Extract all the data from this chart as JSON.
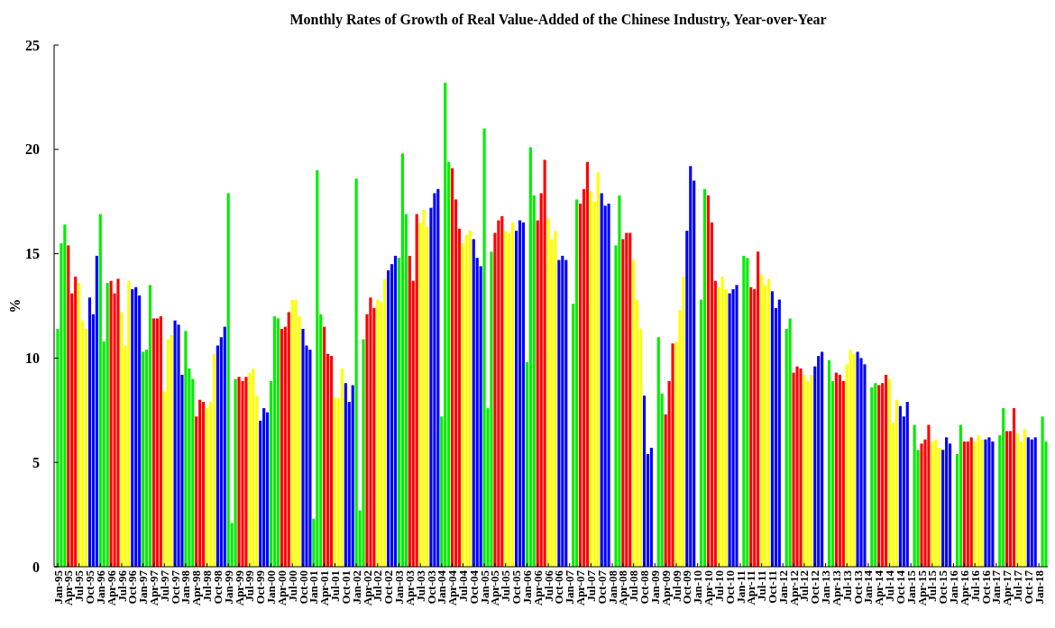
{
  "chart_data": {
    "type": "bar",
    "title": "Monthly Rates of Growth  of Real Value-Added of the Chinese Industry,  Year-over-Year",
    "ylabel": "%",
    "categories": [
      "Jan-95",
      null,
      null,
      "Apr-95",
      null,
      null,
      "Jul-95",
      null,
      null,
      "Oct-95",
      null,
      null,
      "Jan-96",
      null,
      null,
      "Apr-96",
      null,
      null,
      "Jul-96",
      null,
      null,
      "Oct-96",
      null,
      null,
      "Jan-97",
      null,
      null,
      "Apr-97",
      null,
      null,
      "Jul-97",
      null,
      null,
      "Oct-97",
      null,
      null,
      "Jan-98",
      null,
      null,
      "Apr-98",
      null,
      null,
      "Jul-98",
      null,
      null,
      "Oct-98",
      null,
      null,
      "Jan-99",
      null,
      null,
      "Apr-99",
      null,
      null,
      "Jul-99",
      null,
      null,
      "Oct-99",
      null,
      null,
      "Jan-00",
      null,
      null,
      "Apr-00",
      null,
      null,
      "Jul-00",
      null,
      null,
      "Oct-00",
      null,
      null,
      "Jan-01",
      null,
      null,
      "Apr-01",
      null,
      null,
      "Jul-01",
      null,
      null,
      "Oct-01",
      null,
      null,
      "Jan-02",
      null,
      null,
      "Apr-02",
      null,
      null,
      "Jul-02",
      null,
      null,
      "Oct-02",
      null,
      null,
      "Jan-03",
      null,
      null,
      "Apr-03",
      null,
      null,
      "Jul-03",
      null,
      null,
      "Oct-03",
      null,
      null,
      "Jan-04",
      null,
      null,
      "Apr-04",
      null,
      null,
      "Jul-04",
      null,
      null,
      "Oct-04",
      null,
      null,
      "Jan-05",
      null,
      null,
      "Apr-05",
      null,
      null,
      "Jul-05",
      null,
      null,
      "Oct-05",
      null,
      null,
      "Jan-06",
      null,
      null,
      "Apr-06",
      null,
      null,
      "Jul-06",
      null,
      null,
      "Oct-06",
      null,
      null,
      "Jan-07",
      null,
      null,
      "Apr-07",
      null,
      null,
      "Jul-07",
      null,
      null,
      "Oct-07",
      null,
      null,
      "Jan-08",
      null,
      null,
      "Apr-08",
      null,
      null,
      "Jul-08",
      null,
      null,
      "Oct-08",
      null,
      null,
      "Jan-09",
      null,
      null,
      "Apr-09",
      null,
      null,
      "Jul-09",
      null,
      null,
      "Oct-09",
      null,
      null,
      "Jan-10",
      null,
      null,
      "Apr-10",
      null,
      null,
      "Jul-10",
      null,
      null,
      "Oct-10",
      null,
      null,
      "Jan-11",
      null,
      null,
      "Apr-11",
      null,
      null,
      "Jul-11",
      null,
      null,
      "Oct-11",
      null,
      null,
      "Jan-12",
      null,
      null,
      "Apr-12",
      null,
      null,
      "Jul-12",
      null,
      null,
      "Oct-12",
      null,
      null,
      "Jan-13",
      null,
      null,
      "Apr-13",
      null,
      null,
      "Jul-13",
      null,
      null,
      "Oct-13",
      null,
      null,
      "Jan-14",
      null,
      null,
      "Apr-14",
      null,
      null,
      "Jul-14",
      null,
      null,
      "Oct-14",
      null,
      null,
      "Jan-15",
      null,
      null,
      "Apr-15",
      null,
      null,
      "Jul-15",
      null,
      null,
      "Oct-15",
      null,
      null,
      "Jan-16",
      null,
      null,
      "Apr-16",
      null,
      null,
      "Jul-16",
      null,
      null,
      "Oct-16",
      null,
      null,
      "Jan-17",
      null,
      null,
      "Apr-17",
      null,
      null,
      "Jul-17",
      null,
      null,
      "Oct-17",
      null,
      null,
      "Jan-18",
      null,
      null
    ],
    "values": [
      11.4,
      15.5,
      16.4,
      15.4,
      13.1,
      13.9,
      13.6,
      11.8,
      11.4,
      12.9,
      12.1,
      14.9,
      16.9,
      10.8,
      13.6,
      13.7,
      13.1,
      13.8,
      12.2,
      10.6,
      13.7,
      13.3,
      13.4,
      13.0,
      10.3,
      10.4,
      13.5,
      11.9,
      11.9,
      12.0,
      8.4,
      10.9,
      11.1,
      11.8,
      11.6,
      9.2,
      11.3,
      9.5,
      9.0,
      7.2,
      8.0,
      7.9,
      7.6,
      7.9,
      10.2,
      10.6,
      11.0,
      11.5,
      17.9,
      2.1,
      9.0,
      9.1,
      8.9,
      9.1,
      9.3,
      9.5,
      8.2,
      7.0,
      7.6,
      7.4,
      8.9,
      12.0,
      11.9,
      11.4,
      11.5,
      12.2,
      12.8,
      12.8,
      12.0,
      11.4,
      10.6,
      10.4,
      2.3,
      19.0,
      12.1,
      11.5,
      10.2,
      10.1,
      8.1,
      8.1,
      9.5,
      8.8,
      7.9,
      8.7,
      18.6,
      2.7,
      10.9,
      12.1,
      12.9,
      12.4,
      12.8,
      12.7,
      13.8,
      14.2,
      14.5,
      14.9,
      14.8,
      19.8,
      16.9,
      14.9,
      13.7,
      16.9,
      16.5,
      17.1,
      16.3,
      17.2,
      17.9,
      18.1,
      7.2,
      23.2,
      19.4,
      19.1,
      17.6,
      16.2,
      15.5,
      15.9,
      16.1,
      15.7,
      14.8,
      14.4,
      21.0,
      7.6,
      15.1,
      16.0,
      16.6,
      16.8,
      16.1,
      16.0,
      16.5,
      16.1,
      16.6,
      16.5,
      9.8,
      20.1,
      17.8,
      16.6,
      17.9,
      19.5,
      16.7,
      15.7,
      16.1,
      14.7,
      14.9,
      14.7,
      null,
      12.6,
      17.6,
      17.4,
      18.1,
      19.4,
      18.0,
      17.5,
      18.9,
      17.9,
      17.3,
      17.4,
      null,
      15.4,
      17.8,
      15.7,
      16.0,
      16.0,
      14.7,
      12.8,
      11.4,
      8.2,
      5.4,
      5.7,
      null,
      11.0,
      8.3,
      7.3,
      8.9,
      10.7,
      10.8,
      12.3,
      13.9,
      16.1,
      19.2,
      18.5,
      null,
      12.8,
      18.1,
      17.8,
      16.5,
      13.7,
      13.4,
      13.9,
      13.3,
      13.1,
      13.3,
      13.5,
      null,
      14.9,
      14.8,
      13.4,
      13.3,
      15.1,
      14.0,
      13.5,
      13.8,
      13.2,
      12.4,
      12.8,
      null,
      11.4,
      11.9,
      9.3,
      9.6,
      9.5,
      9.2,
      8.9,
      9.2,
      9.6,
      10.1,
      10.3,
      null,
      9.9,
      8.9,
      9.3,
      9.2,
      8.9,
      9.7,
      10.4,
      10.2,
      10.3,
      10.0,
      9.7,
      null,
      8.6,
      8.8,
      8.7,
      8.8,
      9.2,
      9.0,
      6.9,
      8.0,
      7.7,
      7.2,
      7.9,
      null,
      6.8,
      5.6,
      5.9,
      6.1,
      6.8,
      6.0,
      6.1,
      5.7,
      5.6,
      6.2,
      5.9,
      null,
      5.4,
      6.8,
      6.0,
      6.0,
      6.2,
      6.0,
      6.3,
      6.1,
      6.1,
      6.2,
      6.0,
      null,
      6.3,
      7.6,
      6.5,
      6.5,
      7.6,
      6.4,
      6.0,
      6.6,
      6.2,
      6.1,
      6.2,
      null,
      7.2,
      6.0
    ],
    "colors": [
      "#00ee00",
      "#00ee00",
      "#00ee00",
      "#ff0000",
      "#ff0000",
      "#ff0000",
      "#ffff00",
      "#ffff00",
      "#ffff00",
      "#0000ff",
      "#0000ff",
      "#0000ff",
      "#00ee00",
      "#00ee00",
      "#00ee00",
      "#ff0000",
      "#ff0000",
      "#ff0000",
      "#ffff00",
      "#ffff00",
      "#ffff00",
      "#0000ff",
      "#0000ff",
      "#0000ff",
      "#00ee00",
      "#00ee00",
      "#00ee00",
      "#ff0000",
      "#ff0000",
      "#ff0000",
      "#ffff00",
      "#ffff00",
      "#ffff00",
      "#0000ff",
      "#0000ff",
      "#0000ff",
      "#00ee00",
      "#00ee00",
      "#00ee00",
      "#ff0000",
      "#ff0000",
      "#ff0000",
      "#ffff00",
      "#ffff00",
      "#ffff00",
      "#0000ff",
      "#0000ff",
      "#0000ff",
      "#00ee00",
      "#00ee00",
      "#00ee00",
      "#ff0000",
      "#ff0000",
      "#ff0000",
      "#ffff00",
      "#ffff00",
      "#ffff00",
      "#0000ff",
      "#0000ff",
      "#0000ff",
      "#00ee00",
      "#00ee00",
      "#00ee00",
      "#ff0000",
      "#ff0000",
      "#ff0000",
      "#ffff00",
      "#ffff00",
      "#ffff00",
      "#0000ff",
      "#0000ff",
      "#0000ff",
      "#00ee00",
      "#00ee00",
      "#00ee00",
      "#ff0000",
      "#ff0000",
      "#ff0000",
      "#ffff00",
      "#ffff00",
      "#ffff00",
      "#0000ff",
      "#0000ff",
      "#0000ff",
      "#00ee00",
      "#00ee00",
      "#00ee00",
      "#ff0000",
      "#ff0000",
      "#ff0000",
      "#ffff00",
      "#ffff00",
      "#ffff00",
      "#0000ff",
      "#0000ff",
      "#0000ff",
      "#00ee00",
      "#00ee00",
      "#00ee00",
      "#ff0000",
      "#ff0000",
      "#ff0000",
      "#ffff00",
      "#ffff00",
      "#ffff00",
      "#0000ff",
      "#0000ff",
      "#0000ff",
      "#00ee00",
      "#00ee00",
      "#00ee00",
      "#ff0000",
      "#ff0000",
      "#ff0000",
      "#ffff00",
      "#ffff00",
      "#ffff00",
      "#0000ff",
      "#0000ff",
      "#0000ff",
      "#00ee00",
      "#00ee00",
      "#00ee00",
      "#ff0000",
      "#ff0000",
      "#ff0000",
      "#ffff00",
      "#ffff00",
      "#ffff00",
      "#0000ff",
      "#0000ff",
      "#0000ff",
      "#00ee00",
      "#00ee00",
      "#00ee00",
      "#ff0000",
      "#ff0000",
      "#ff0000",
      "#ffff00",
      "#ffff00",
      "#ffff00",
      "#0000ff",
      "#0000ff",
      "#0000ff",
      null,
      "#00ee00",
      "#00ee00",
      "#ff0000",
      "#ff0000",
      "#ff0000",
      "#ffff00",
      "#ffff00",
      "#ffff00",
      "#0000ff",
      "#0000ff",
      "#0000ff",
      null,
      "#00ee00",
      "#00ee00",
      "#ff0000",
      "#ff0000",
      "#ff0000",
      "#ffff00",
      "#ffff00",
      "#ffff00",
      "#0000ff",
      "#0000ff",
      "#0000ff",
      null,
      "#00ee00",
      "#00ee00",
      "#ff0000",
      "#ff0000",
      "#ff0000",
      "#ffff00",
      "#ffff00",
      "#ffff00",
      "#0000ff",
      "#0000ff",
      "#0000ff",
      null,
      "#00ee00",
      "#00ee00",
      "#ff0000",
      "#ff0000",
      "#ff0000",
      "#ffff00",
      "#ffff00",
      "#ffff00",
      "#0000ff",
      "#0000ff",
      "#0000ff",
      null,
      "#00ee00",
      "#00ee00",
      "#ff0000",
      "#ff0000",
      "#ff0000",
      "#ffff00",
      "#ffff00",
      "#ffff00",
      "#0000ff",
      "#0000ff",
      "#0000ff",
      null,
      "#00ee00",
      "#00ee00",
      "#ff0000",
      "#ff0000",
      "#ff0000",
      "#ffff00",
      "#ffff00",
      "#ffff00",
      "#0000ff",
      "#0000ff",
      "#0000ff",
      null,
      "#00ee00",
      "#00ee00",
      "#ff0000",
      "#ff0000",
      "#ff0000",
      "#ffff00",
      "#ffff00",
      "#ffff00",
      "#0000ff",
      "#0000ff",
      "#0000ff",
      null,
      "#00ee00",
      "#00ee00",
      "#ff0000",
      "#ff0000",
      "#ff0000",
      "#ffff00",
      "#ffff00",
      "#ffff00",
      "#0000ff",
      "#0000ff",
      "#0000ff",
      null,
      "#00ee00",
      "#00ee00",
      "#ff0000",
      "#ff0000",
      "#ff0000",
      "#ffff00",
      "#ffff00",
      "#ffff00",
      "#0000ff",
      "#0000ff",
      "#0000ff",
      null,
      "#00ee00",
      "#00ee00",
      "#ff0000",
      "#ff0000",
      "#ff0000",
      "#ffff00",
      "#ffff00",
      "#ffff00",
      "#0000ff",
      "#0000ff",
      "#0000ff",
      null,
      "#00ee00",
      "#00ee00",
      "#ff0000",
      "#ff0000",
      "#ff0000",
      "#ffff00",
      "#ffff00",
      "#ffff00",
      "#0000ff",
      "#0000ff",
      "#0000ff",
      null,
      "#00ee00",
      "#00ee00"
    ],
    "ylim": [
      0,
      25
    ],
    "yticks": [
      0,
      5,
      10,
      15,
      20,
      25
    ]
  }
}
